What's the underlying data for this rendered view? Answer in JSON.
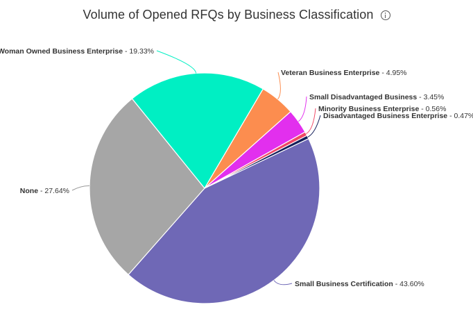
{
  "header": {
    "title": "Volume of Opened RFQs by Business Classification",
    "info_icon": "info-icon"
  },
  "chart_data": {
    "type": "pie",
    "title": "Volume of Opened RFQs by Business Classification",
    "slices": [
      {
        "name": "Small Business Certification",
        "value": 43.6,
        "label": "43.60%",
        "color": "#6f68b6"
      },
      {
        "name": "None",
        "value": 27.64,
        "label": "27.64%",
        "color": "#a6a6a6"
      },
      {
        "name": "Woman Owned Business Enterprise",
        "value": 19.33,
        "label": "19.33%",
        "color": "#00efc3"
      },
      {
        "name": "Veteran Business Enterprise",
        "value": 4.95,
        "label": "4.95%",
        "color": "#fc8d4f"
      },
      {
        "name": "Small Disadvantaged Business",
        "value": 3.45,
        "label": "3.45%",
        "color": "#e22fee"
      },
      {
        "name": "Minority Business Enterprise",
        "value": 0.56,
        "label": "0.56%",
        "color": "#f04765"
      },
      {
        "name": "Disadvantaged Business Enterprise",
        "value": 0.47,
        "label": "0.47%",
        "color": "#141f5a"
      }
    ]
  }
}
